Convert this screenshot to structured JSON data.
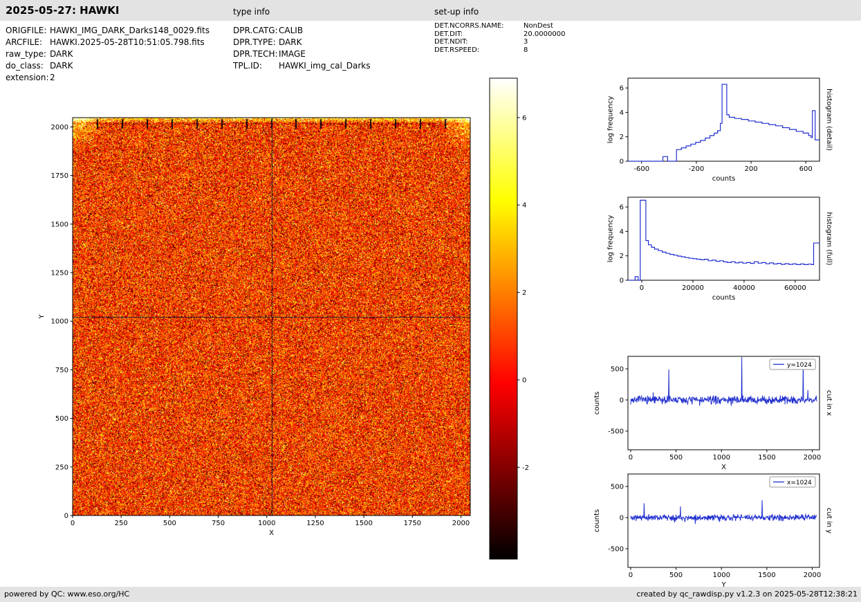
{
  "header": {
    "title": "2025-05-27: HAWKI",
    "type_info_label": "type info",
    "setup_info_label": "set-up info"
  },
  "file_info": {
    "rows": [
      {
        "label": "ORIGFILE:",
        "value": "HAWKI_IMG_DARK_Darks148_0029.fits"
      },
      {
        "label": "ARCFILE:",
        "value": "HAWKI.2025-05-28T10:51:05.798.fits"
      },
      {
        "label": "raw_type:",
        "value": "DARK"
      },
      {
        "label": "do_class:",
        "value": "DARK"
      },
      {
        "label": "extension:",
        "value": "2"
      }
    ]
  },
  "type_info": {
    "rows": [
      {
        "label": "DPR.CATG:",
        "value": "CALIB"
      },
      {
        "label": "DPR.TYPE:",
        "value": "DARK"
      },
      {
        "label": "DPR.TECH:",
        "value": "IMAGE"
      },
      {
        "label": "TPL.ID:",
        "value": "HAWKI_img_cal_Darks"
      }
    ]
  },
  "setup_info": {
    "rows": [
      {
        "label": "DET.NCORRS.NAME:",
        "value": "NonDest"
      },
      {
        "label": "DET.DIT:",
        "value": "20.0000000"
      },
      {
        "label": "DET.NDIT:",
        "value": "3"
      },
      {
        "label": "DET.RSPEED:",
        "value": "8"
      }
    ]
  },
  "footer": {
    "left": "powered by QC: www.eso.org/HC",
    "right": "created by qc_rawdisp.py v1.2.3 on 2025-05-28T12:38:21"
  },
  "chart_data": [
    {
      "id": "main_image",
      "type": "heatmap",
      "description": "2048x2048 raw HAWKI dark frame, hot colormap, noisy orange/red with black and white speckles, bright top edge band with dark channel tick marks every 128 px, brighter top corners, dark crosshair cut lines",
      "xlabel": "X",
      "ylabel": "Y",
      "xlim": [
        0,
        2048
      ],
      "ylim": [
        0,
        2048
      ],
      "xticks": [
        0,
        250,
        500,
        750,
        1000,
        1250,
        1500,
        1750,
        2000
      ],
      "yticks": [
        0,
        250,
        500,
        750,
        1000,
        1250,
        1500,
        1750,
        2000
      ],
      "colormap": "hot",
      "crosshair": {
        "x": 1024,
        "y": 1024
      }
    },
    {
      "id": "colorbar",
      "type": "colorbar",
      "colormap": "hot",
      "vmin": -4.1,
      "vmax": 6.9,
      "ticks": [
        6,
        4,
        2,
        0,
        -2
      ]
    },
    {
      "id": "histogram_detail",
      "type": "line",
      "step": true,
      "color": "#2230cf",
      "xlabel": "counts",
      "ylabel": "log frequency",
      "right_label": "histogram (detail)",
      "xlim": [
        -700,
        700
      ],
      "ylim": [
        0,
        6.8
      ],
      "xticks": [
        -600,
        -200,
        200,
        600
      ],
      "yticks": [
        0,
        2,
        4,
        6
      ],
      "points": [
        [
          -700,
          0
        ],
        [
          -445,
          0.38
        ],
        [
          -410,
          0
        ],
        [
          -345,
          0.95
        ],
        [
          -310,
          1.1
        ],
        [
          -275,
          1.25
        ],
        [
          -240,
          1.4
        ],
        [
          -205,
          1.55
        ],
        [
          -170,
          1.7
        ],
        [
          -135,
          1.9
        ],
        [
          -100,
          2.1
        ],
        [
          -70,
          2.3
        ],
        [
          -45,
          2.5
        ],
        [
          -25,
          3.1
        ],
        [
          -12,
          6.3
        ],
        [
          22,
          3.8
        ],
        [
          40,
          3.6
        ],
        [
          80,
          3.5
        ],
        [
          130,
          3.42
        ],
        [
          180,
          3.3
        ],
        [
          230,
          3.2
        ],
        [
          280,
          3.1
        ],
        [
          330,
          3.0
        ],
        [
          380,
          2.9
        ],
        [
          430,
          2.75
        ],
        [
          480,
          2.6
        ],
        [
          530,
          2.45
        ],
        [
          580,
          2.3
        ],
        [
          620,
          2.1
        ],
        [
          638,
          1.95
        ],
        [
          648,
          4.15
        ],
        [
          668,
          1.75
        ],
        [
          700,
          1.75
        ]
      ]
    },
    {
      "id": "histogram_full",
      "type": "line",
      "step": true,
      "color": "#2230cf",
      "xlabel": "counts",
      "ylabel": "log frequency",
      "right_label": "histogram (full)",
      "xlim": [
        -5400,
        69500
      ],
      "ylim": [
        0,
        6.8
      ],
      "xticks": [
        0,
        20000,
        40000,
        60000
      ],
      "yticks": [
        0,
        2,
        4,
        6
      ],
      "points": [
        [
          -5400,
          0
        ],
        [
          -2600,
          0.3
        ],
        [
          -1400,
          0
        ],
        [
          -600,
          6.55
        ],
        [
          1600,
          3.25
        ],
        [
          2600,
          2.9
        ],
        [
          3800,
          2.7
        ],
        [
          5000,
          2.55
        ],
        [
          6500,
          2.42
        ],
        [
          8000,
          2.3
        ],
        [
          9500,
          2.2
        ],
        [
          11000,
          2.12
        ],
        [
          12500,
          2.05
        ],
        [
          14000,
          1.98
        ],
        [
          15500,
          1.92
        ],
        [
          17000,
          1.86
        ],
        [
          18500,
          1.8
        ],
        [
          20000,
          1.76
        ],
        [
          21500,
          1.72
        ],
        [
          23000,
          1.68
        ],
        [
          24500,
          1.72
        ],
        [
          26000,
          1.6
        ],
        [
          27500,
          1.65
        ],
        [
          29000,
          1.55
        ],
        [
          30500,
          1.6
        ],
        [
          32000,
          1.5
        ],
        [
          33500,
          1.45
        ],
        [
          35000,
          1.52
        ],
        [
          36500,
          1.42
        ],
        [
          38000,
          1.48
        ],
        [
          39500,
          1.4
        ],
        [
          41000,
          1.45
        ],
        [
          42500,
          1.38
        ],
        [
          44000,
          1.52
        ],
        [
          45500,
          1.4
        ],
        [
          47000,
          1.45
        ],
        [
          48500,
          1.35
        ],
        [
          50000,
          1.42
        ],
        [
          51500,
          1.33
        ],
        [
          53000,
          1.38
        ],
        [
          54500,
          1.3
        ],
        [
          56000,
          1.36
        ],
        [
          57500,
          1.3
        ],
        [
          59000,
          1.34
        ],
        [
          60500,
          1.28
        ],
        [
          62000,
          1.33
        ],
        [
          63500,
          1.28
        ],
        [
          65000,
          1.32
        ],
        [
          66300,
          1.28
        ],
        [
          67200,
          3.05
        ],
        [
          69500,
          3.05
        ]
      ]
    },
    {
      "id": "cut_x",
      "type": "line",
      "color": "#2230cf",
      "legend": "y=1024",
      "xlabel": "X",
      "ylabel": "counts",
      "right_label": "cut in x",
      "xlim": [
        -30,
        2080
      ],
      "ylim": [
        -800,
        700
      ],
      "xticks": [
        0,
        500,
        1000,
        1500,
        2000
      ],
      "yticks": [
        -500,
        0,
        500
      ],
      "noise_amp": 40,
      "spikes": [
        [
          120,
          70
        ],
        [
          248,
          120
        ],
        [
          420,
          490
        ],
        [
          760,
          -95
        ],
        [
          1224,
          690
        ],
        [
          1452,
          70
        ],
        [
          1700,
          -70
        ],
        [
          1900,
          620
        ],
        [
          1952,
          160
        ]
      ]
    },
    {
      "id": "cut_y",
      "type": "line",
      "color": "#2230cf",
      "legend": "x=1024",
      "xlabel": "Y",
      "ylabel": "counts",
      "right_label": "cut in y",
      "xlim": [
        -30,
        2080
      ],
      "ylim": [
        -800,
        700
      ],
      "xticks": [
        0,
        500,
        1000,
        1500,
        2000
      ],
      "yticks": [
        -500,
        0,
        500
      ],
      "noise_amp": 30,
      "spikes": [
        [
          148,
          230
        ],
        [
          548,
          180
        ],
        [
          980,
          -70
        ],
        [
          1448,
          280
        ]
      ]
    }
  ]
}
